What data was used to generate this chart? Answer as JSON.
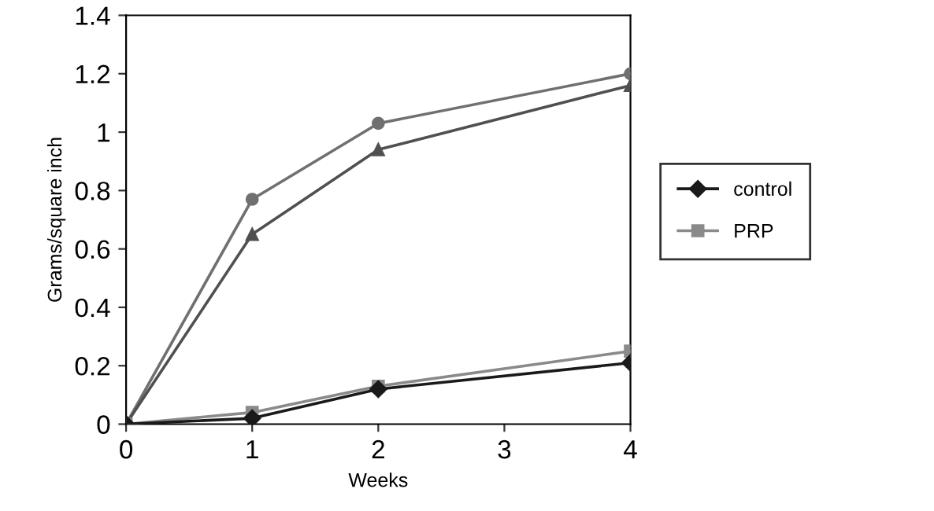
{
  "chart_data": {
    "type": "line",
    "xlabel": "Weeks",
    "ylabel": "Grams/square inch",
    "xlim": [
      0,
      4
    ],
    "xticks": [
      0,
      1,
      2,
      3,
      4
    ],
    "ylim": [
      0,
      1.4
    ],
    "yticks": [
      0,
      0.2,
      0.4,
      0.6,
      0.8,
      1,
      1.2,
      1.4
    ],
    "grid": false,
    "legend": "right",
    "series": [
      {
        "name": "control",
        "color": "#1a1a1a",
        "marker": "diamond",
        "x": [
          0,
          1,
          2,
          4
        ],
        "values": [
          0,
          0.02,
          0.12,
          0.21
        ]
      },
      {
        "name": "PRP",
        "color": "#8a8a8a",
        "marker": "square",
        "x": [
          0,
          1,
          2,
          4
        ],
        "values": [
          0,
          0.04,
          0.13,
          0.25
        ]
      },
      {
        "color": "#505050",
        "marker": "triangle",
        "x": [
          0,
          1,
          2,
          4
        ],
        "values": [
          0,
          0.65,
          0.94,
          1.16
        ]
      },
      {
        "color": "#707070",
        "marker": "circle",
        "x": [
          0,
          1,
          2,
          4
        ],
        "values": [
          0,
          0.77,
          1.03,
          1.2
        ]
      }
    ]
  }
}
